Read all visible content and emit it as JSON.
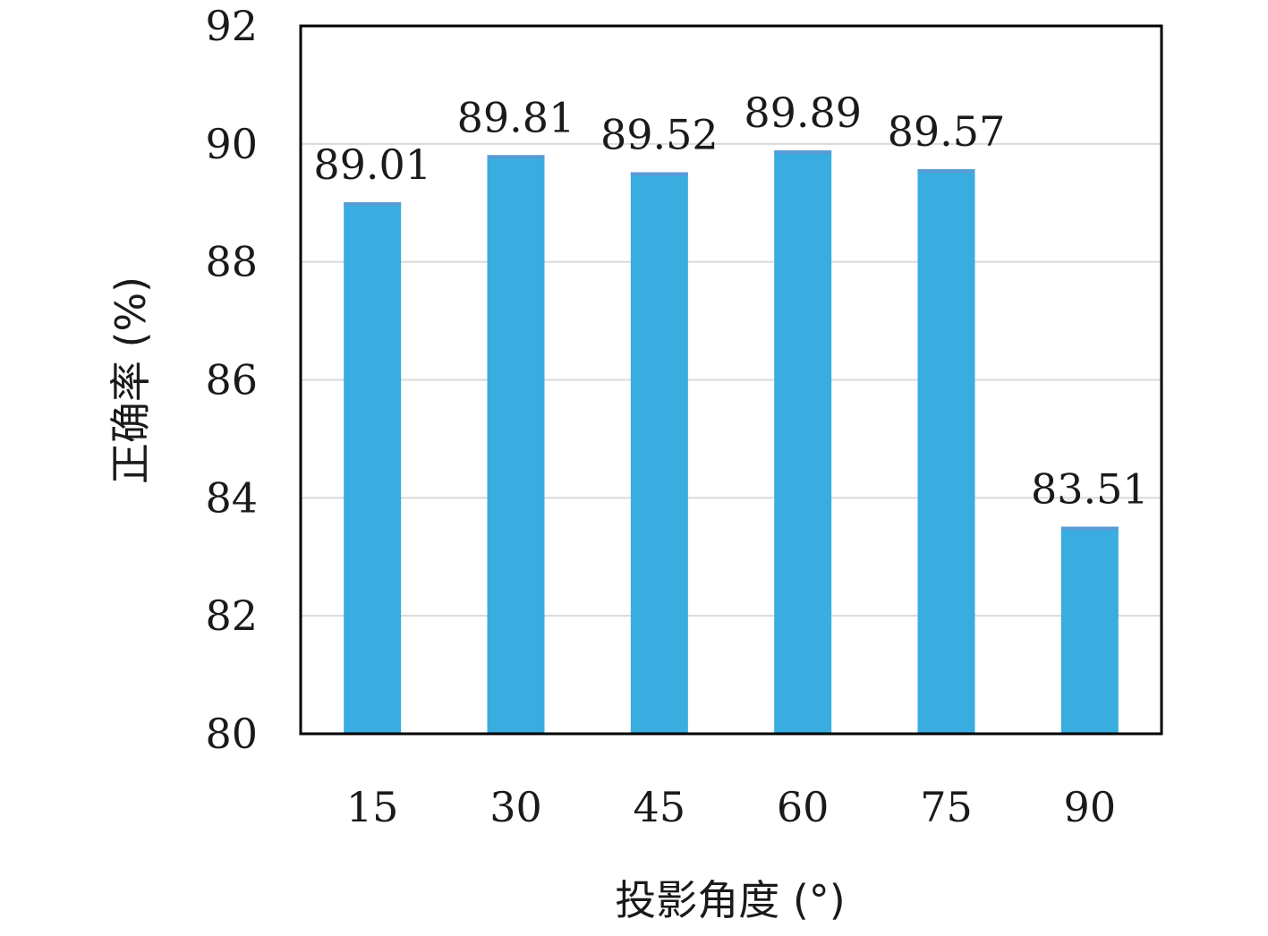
{
  "chart_data": {
    "type": "bar",
    "title": "",
    "xlabel": "投影角度 (°)",
    "ylabel": "正确率 (%)",
    "categories": [
      "15",
      "30",
      "45",
      "60",
      "75",
      "90"
    ],
    "values": [
      89.01,
      89.81,
      89.52,
      89.89,
      89.57,
      83.51
    ],
    "data_labels": [
      "89.01",
      "89.81",
      "89.52",
      "89.89",
      "89.57",
      "83.51"
    ],
    "ylim": [
      80,
      92
    ],
    "yticks": [
      "80",
      "82",
      "84",
      "86",
      "88",
      "90",
      "92"
    ],
    "grid": true,
    "legend": "none",
    "colors": {
      "bar": "#3AADE0",
      "bar_top": "#5A9BD5",
      "grid": "#D9D9D9",
      "axis": "#000000"
    }
  }
}
